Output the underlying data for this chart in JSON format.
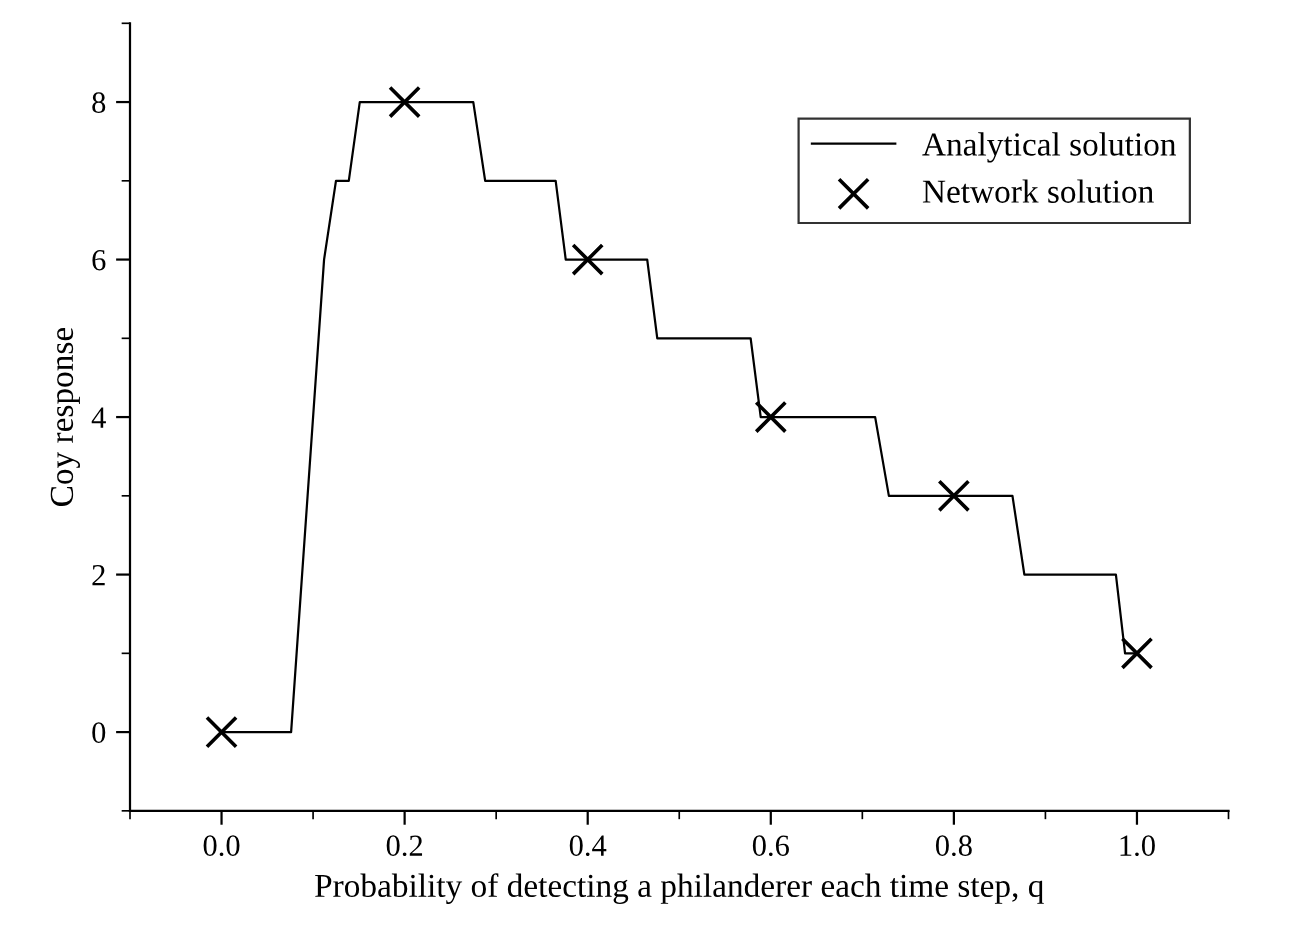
{
  "chart_data": {
    "type": "line",
    "xlabel": "Probability of detecting a philanderer each time step, q",
    "ylabel": "Coy response",
    "series": [
      {
        "name": "Analytical solution",
        "color": "#000000",
        "marker": "none",
        "x": [
          0.0,
          0.076,
          0.112,
          0.125,
          0.139,
          0.151,
          0.275,
          0.288,
          0.365,
          0.376,
          0.465,
          0.476,
          0.578,
          0.589,
          0.714,
          0.729,
          0.864,
          0.877,
          0.977,
          0.987,
          1.0
        ],
        "values": [
          0,
          0,
          6,
          7,
          7,
          8,
          8,
          7,
          7,
          6,
          6,
          5,
          5,
          4,
          4,
          3,
          3,
          2,
          2,
          1,
          1
        ]
      },
      {
        "name": "Network solution",
        "type": "scatter",
        "color": "#000000",
        "marker": "cross",
        "x": [
          0.0,
          0.2,
          0.4,
          0.6,
          0.8,
          1.0
        ],
        "values": [
          0,
          8,
          6,
          4,
          3,
          1
        ]
      }
    ],
    "xlim": [
      -0.1,
      1.1
    ],
    "ylim": [
      -1,
      9
    ],
    "xticks": [
      {
        "value": 0,
        "label": "0.0"
      },
      0.2,
      0.4,
      0.6,
      0.8,
      {
        "value": 1,
        "label": "1.0"
      }
    ],
    "yticks": [
      0,
      2,
      4,
      6,
      8
    ],
    "grid": false,
    "legend": "top right"
  }
}
